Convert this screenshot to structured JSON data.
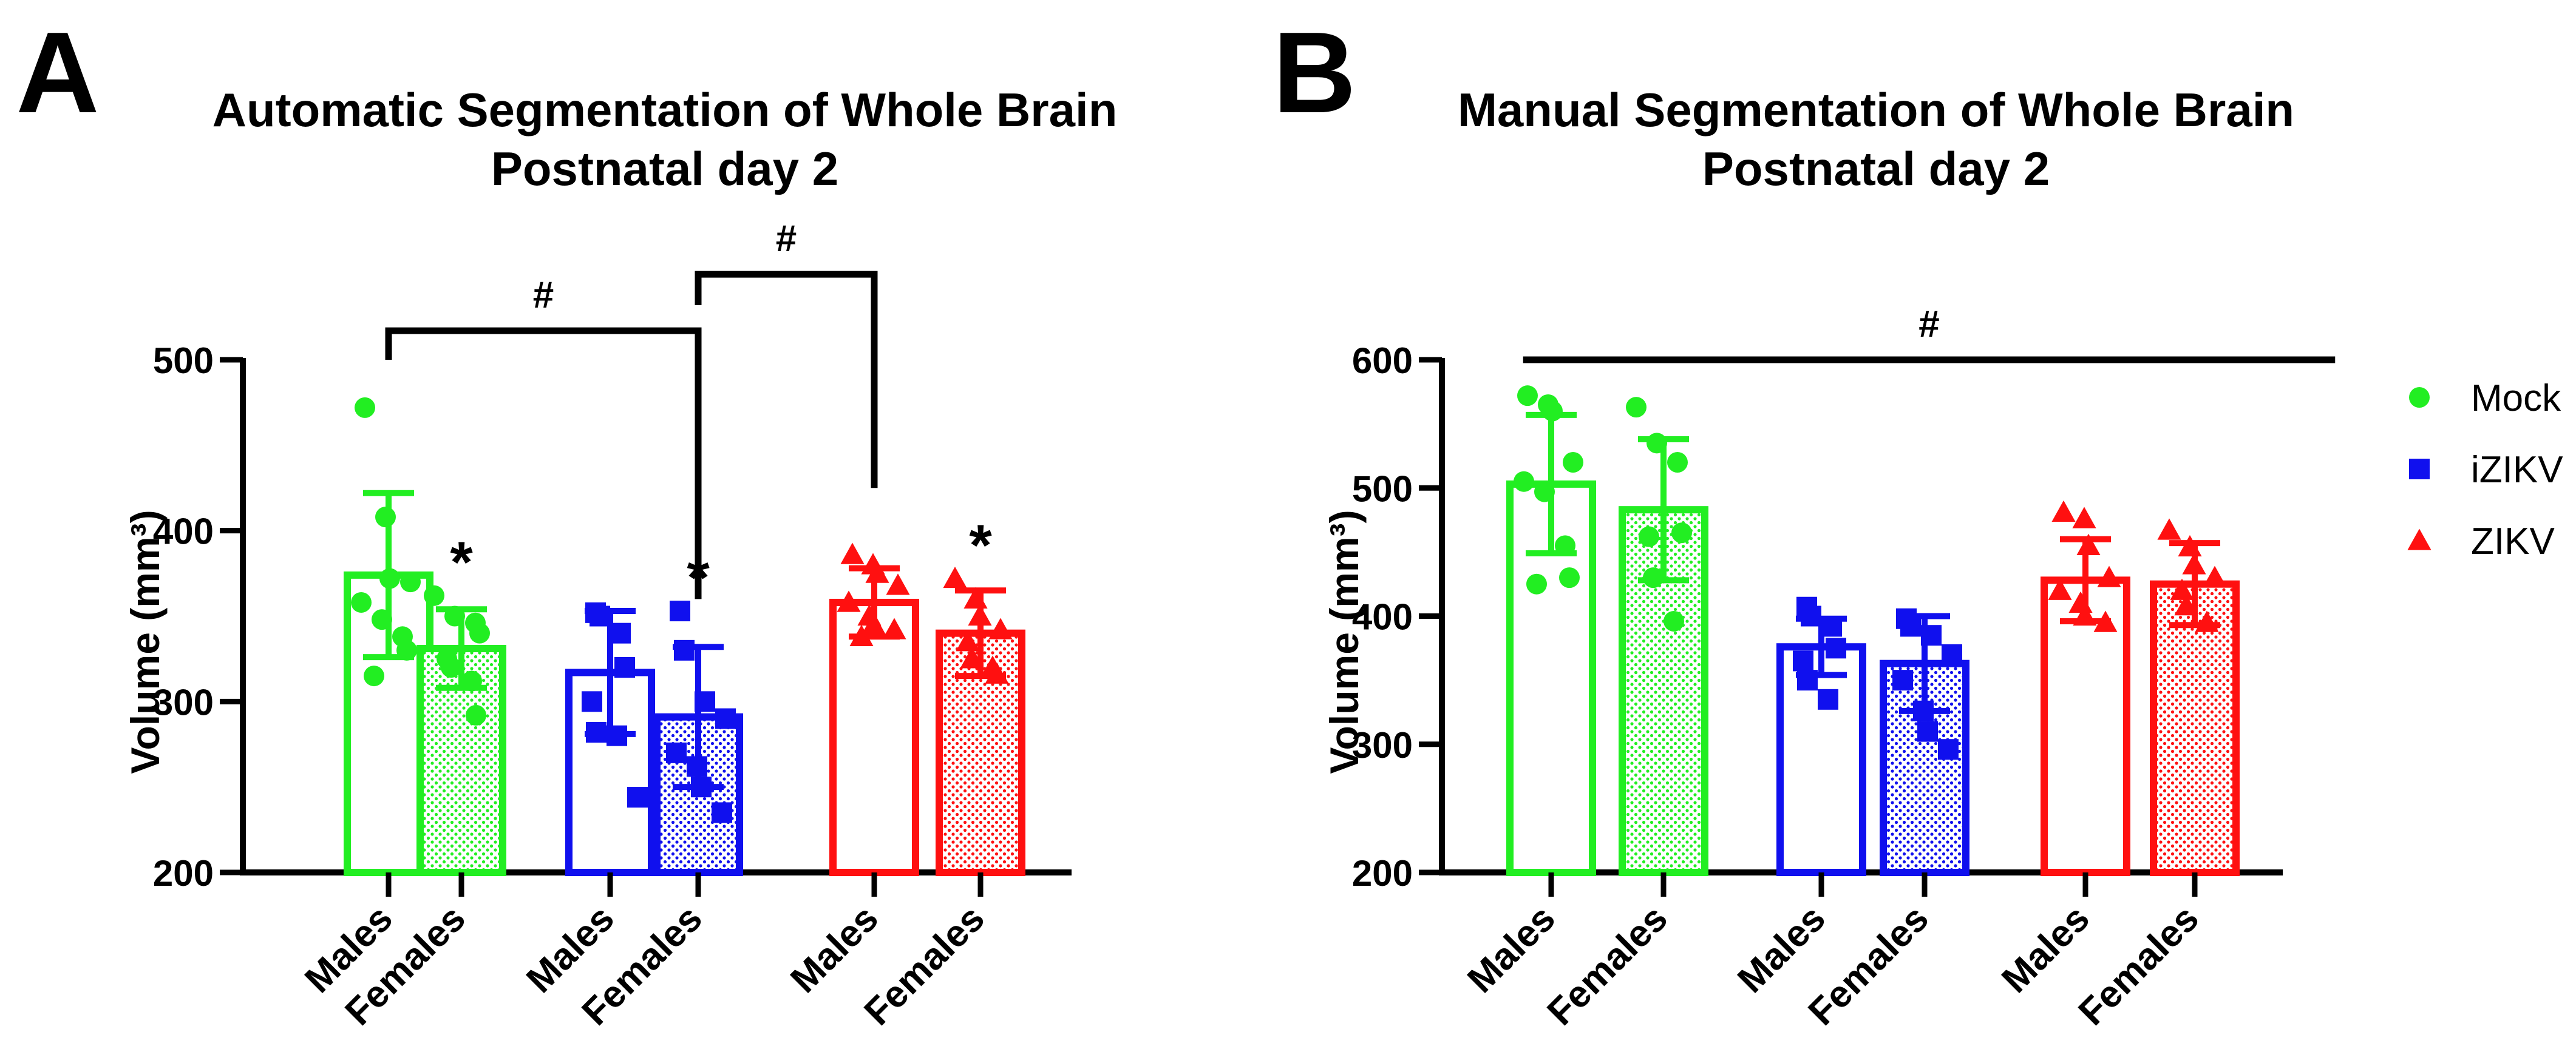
{
  "chart_data": [
    {
      "panel_label": "A",
      "type": "bar",
      "title": [
        "Automatic Segmentation of Whole Brain",
        "Postnatal day 2"
      ],
      "ylabel": "Volume (mm³)",
      "ylim": [
        200,
        500
      ],
      "yticks": [
        200,
        300,
        400,
        500
      ],
      "categories": [
        "Males",
        "Females",
        "Males",
        "Females",
        "Males",
        "Females"
      ],
      "groups": [
        "Mock",
        "Mock",
        "iZIKV",
        "iZIKV",
        "ZIKV",
        "ZIKV"
      ],
      "values": [
        374,
        331,
        317,
        291,
        358,
        340
      ],
      "sd": [
        48,
        23,
        36,
        41,
        20,
        25
      ],
      "points": [
        [
          472,
          408,
          372,
          370,
          358,
          348,
          338,
          330,
          315
        ],
        [
          362,
          350,
          346,
          340,
          325,
          320,
          312,
          292
        ],
        [
          352,
          350,
          340,
          320,
          300,
          282,
          280,
          244
        ],
        [
          353,
          330,
          300,
          290,
          270,
          262,
          250,
          235
        ],
        [
          386,
          380,
          375,
          368,
          358,
          350,
          345,
          342,
          338
        ],
        [
          372,
          360,
          350,
          342,
          335,
          325,
          320,
          316
        ]
      ],
      "star_label": "*",
      "stars": [
        1,
        3,
        5
      ],
      "significance": [
        {
          "label": "#",
          "from": 0,
          "to": 3,
          "level": 517,
          "drop_to": [
            500,
            360
          ]
        },
        {
          "label": "#",
          "from": 3,
          "to": 4,
          "level": 550,
          "drop_to": [
            532,
            425
          ]
        }
      ]
    },
    {
      "panel_label": "B",
      "type": "bar",
      "title": [
        "Manual Segmentation of Whole Brain",
        "Postnatal day 2"
      ],
      "ylabel": "Volume (mm³)",
      "ylim": [
        200,
        600
      ],
      "yticks": [
        200,
        300,
        400,
        500,
        600
      ],
      "categories": [
        "Males",
        "Females",
        "Males",
        "Females",
        "Males",
        "Females"
      ],
      "groups": [
        "Mock",
        "Mock",
        "iZIKV",
        "iZIKV",
        "ZIKV",
        "ZIKV"
      ],
      "values": [
        503,
        483,
        376,
        363,
        428,
        425
      ],
      "sd": [
        54,
        55,
        22,
        37,
        32,
        32
      ],
      "points": [
        [
          572,
          565,
          560,
          520,
          505,
          497,
          455,
          430,
          425
        ],
        [
          563,
          535,
          520,
          465,
          462,
          430,
          396
        ],
        [
          407,
          400,
          392,
          375,
          365,
          350,
          335
        ],
        [
          398,
          392,
          385,
          370,
          350,
          326,
          310,
          296
        ],
        [
          481,
          476,
          455,
          430,
          420,
          410,
          400,
          395
        ],
        [
          467,
          454,
          440,
          430,
          420,
          408,
          395
        ]
      ],
      "stars": [],
      "significance": [
        {
          "label": "#",
          "from": -0.25,
          "to": 6.25,
          "level": 600,
          "drop_to": null
        }
      ]
    }
  ],
  "legend": {
    "position": "right",
    "entries": [
      {
        "name": "Mock",
        "marker": "circle",
        "color": "#22ee22"
      },
      {
        "name": "iZIKV",
        "marker": "square",
        "color": "#1010ee"
      },
      {
        "name": "ZIKV",
        "marker": "triangle",
        "color": "#ff1010"
      }
    ]
  },
  "colors": {
    "Mock": "#22ee22",
    "iZIKV": "#1010ee",
    "ZIKV": "#ff1010",
    "axis": "#000000"
  }
}
